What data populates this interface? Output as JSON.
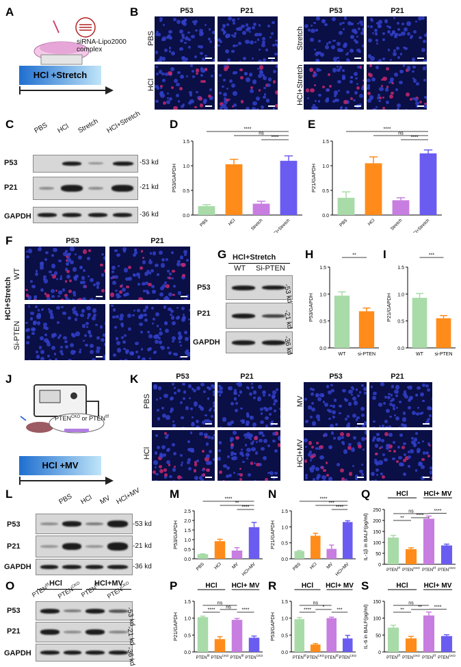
{
  "panels": [
    "A",
    "B",
    "C",
    "D",
    "E",
    "F",
    "G",
    "H",
    "I",
    "J",
    "K",
    "L",
    "M",
    "N",
    "O",
    "P",
    "Q",
    "R",
    "S"
  ],
  "A": {
    "complex_label": "siRNA-Lipo2000\ncomplex",
    "bar": "HCl +Stretch"
  },
  "B": {
    "cols_left": [
      "P53",
      "P21"
    ],
    "cols_right": [
      "P53",
      "P21"
    ],
    "rows_left": [
      "PBS",
      "HCl"
    ],
    "rows_right": [
      "Stretch",
      "HCl+Stretch"
    ]
  },
  "C": {
    "lanes": [
      "PBS",
      "HCl",
      "Stretch",
      "HCl+Stretch"
    ],
    "rows": [
      "P53",
      "P21",
      "GAPDH"
    ],
    "kd": [
      "-53 kd",
      "-21 kd",
      "-36 kd"
    ]
  },
  "F": {
    "cols": [
      "P53",
      "P21"
    ],
    "group": "HCl+Stretch",
    "rows": [
      "WT",
      "Si-PTEN"
    ]
  },
  "G": {
    "title": "HCl+Stretch",
    "lanes": [
      "WT",
      "Si-PTEN"
    ],
    "rows": [
      "P53",
      "P21",
      "GAPDH"
    ],
    "kd": [
      "-53 kd",
      "-21 kd",
      "-36 kd"
    ]
  },
  "J": {
    "mouse_label": "PTEN",
    "bar": "HCl +MV"
  },
  "K": {
    "cols_left": [
      "P53",
      "P21"
    ],
    "cols_right": [
      "P53",
      "P21"
    ],
    "rows_left": [
      "PBS",
      "HCl"
    ],
    "rows_right": [
      "MV",
      "HCl+MV"
    ]
  },
  "L": {
    "lanes": [
      "PBS",
      "HCl",
      "MV",
      "HCl+MV"
    ],
    "rows": [
      "P53",
      "P21",
      "GAPDH"
    ],
    "kd": [
      "-53 kd",
      "-21 kd",
      "-36 kd"
    ]
  },
  "O": {
    "groups": [
      "HCl",
      "HCl+MV"
    ],
    "lanes": [
      "PTEN",
      "PTEN",
      "PTEN",
      "PTEN"
    ],
    "rows": [
      "P53",
      "P21",
      "GAPDH"
    ],
    "kd": [
      "-53 kd",
      "-21 kd",
      "-36 kd"
    ]
  },
  "colors": {
    "green": "#a8dba8",
    "orange": "#ff8c1a",
    "purple": "#c77ee0",
    "blue": "#6a5cf0"
  },
  "chart_data": [
    {
      "id": "D",
      "type": "bar",
      "categories": [
        "PBS",
        "HCl",
        "Stretch",
        "HCl+Stretch"
      ],
      "values": [
        0.18,
        1.03,
        0.23,
        1.1
      ],
      "errors": [
        0.03,
        0.1,
        0.05,
        0.1
      ],
      "ylabel": "P53/GAPDH",
      "ylim": [
        0,
        1.5
      ],
      "yticks": [
        "0.0",
        "0.5",
        "1.0",
        "1.5"
      ],
      "sig": [
        [
          "****",
          "PBS",
          "HCl+Stretch"
        ],
        [
          "ns",
          "HCl",
          "HCl+Stretch"
        ],
        [
          "****",
          "Stretch",
          "HCl+Stretch"
        ]
      ]
    },
    {
      "id": "E",
      "type": "bar",
      "categories": [
        "PBS",
        "HCl",
        "Stretch",
        "HCl+Stretch"
      ],
      "values": [
        0.35,
        1.05,
        0.3,
        1.25
      ],
      "errors": [
        0.12,
        0.13,
        0.05,
        0.07
      ],
      "ylabel": "P21/GAPDH",
      "ylim": [
        0,
        1.5
      ],
      "yticks": [
        "0.0",
        "0.5",
        "1.0",
        "1.5"
      ],
      "sig": [
        [
          "****",
          "PBS",
          "HCl+Stretch"
        ],
        [
          "ns",
          "HCl",
          "HCl+Stretch"
        ],
        [
          "****",
          "Stretch",
          "HCl+Stretch"
        ]
      ]
    },
    {
      "id": "H",
      "type": "bar",
      "categories": [
        "WT",
        "si-PTEN"
      ],
      "values": [
        0.97,
        0.68
      ],
      "errors": [
        0.07,
        0.06
      ],
      "ylabel": "P53/GAPDH",
      "ylim": [
        0,
        1.5
      ],
      "yticks": [
        "0.0",
        "0.5",
        "1.0",
        "1.5"
      ],
      "sig": [
        [
          "**",
          "WT",
          "si-PTEN"
        ]
      ]
    },
    {
      "id": "I",
      "type": "bar",
      "categories": [
        "WT",
        "si-PTEN"
      ],
      "values": [
        0.93,
        0.55
      ],
      "errors": [
        0.08,
        0.05
      ],
      "ylabel": "P21/GAPDH",
      "ylim": [
        0,
        1.5
      ],
      "yticks": [
        "0.0",
        "0.5",
        "1.0",
        "1.5"
      ],
      "sig": [
        [
          "***",
          "WT",
          "si-PTEN"
        ]
      ]
    },
    {
      "id": "M",
      "type": "bar",
      "categories": [
        "PBS",
        "HCl",
        "MV",
        "HCl+MV"
      ],
      "values": [
        0.24,
        0.92,
        0.43,
        1.65
      ],
      "errors": [
        0.02,
        0.1,
        0.15,
        0.25
      ],
      "ylabel": "P53/GAPDH",
      "ylim": [
        0,
        2.5
      ],
      "yticks": [
        "0.0",
        "0.5",
        "1.0",
        "1.5",
        "2.0",
        "2.5"
      ],
      "sig": [
        [
          "****",
          "PBS",
          "HCl+MV"
        ],
        [
          "**",
          "HCl",
          "HCl+MV"
        ],
        [
          "****",
          "MV",
          "HCl+MV"
        ]
      ]
    },
    {
      "id": "N",
      "type": "bar",
      "categories": [
        "PBS",
        "HCl",
        "MV",
        "HCl+MV"
      ],
      "values": [
        0.24,
        0.72,
        0.31,
        1.15
      ],
      "errors": [
        0.02,
        0.08,
        0.12,
        0.04
      ],
      "ylabel": "P21/GAPDH",
      "ylim": [
        0,
        1.5
      ],
      "yticks": [
        "0.0",
        "0.5",
        "1.0",
        "1.5"
      ],
      "sig": [
        [
          "****",
          "PBS",
          "HCl+MV"
        ],
        [
          "***",
          "HCl",
          "HCl+MV"
        ],
        [
          "****",
          "MV",
          "HCl+MV"
        ]
      ]
    },
    {
      "id": "R",
      "type": "bar",
      "categories": [
        "PTENf/f",
        "PTENCKO",
        "PTENf/f",
        "PTENCKO"
      ],
      "values": [
        122,
        69,
        208,
        86
      ],
      "errors": [
        10,
        6,
        12,
        6
      ],
      "ylabel": "IL-1β in BALF(pg/ml)",
      "ylim": [
        0,
        250
      ],
      "yticks": [
        "0",
        "50",
        "100",
        "150",
        "200",
        "250"
      ],
      "groups": [
        "HCl",
        "HCl+ MV"
      ],
      "sig": [
        [
          "**",
          0,
          1
        ],
        [
          "ns",
          0,
          2
        ],
        [
          "****",
          1,
          2
        ],
        [
          "****",
          2,
          3
        ]
      ]
    },
    {
      "id": "P",
      "type": "bar",
      "categories": [
        "PTENf/f",
        "PTENCKO",
        "PTENf/f",
        "PTENCKO"
      ],
      "values": [
        1.03,
        0.38,
        0.95,
        0.42
      ],
      "errors": [
        0.03,
        0.07,
        0.04,
        0.05
      ],
      "ylabel": "P21/GAPDH",
      "ylim": [
        0,
        1.5
      ],
      "yticks": [
        "0.0",
        "0.5",
        "1.0",
        "1.5"
      ],
      "groups": [
        "HCl",
        "HCl+ MV"
      ],
      "sig": [
        [
          "****",
          0,
          1
        ],
        [
          "ns",
          0,
          2
        ],
        [
          "ns",
          1,
          2
        ],
        [
          "****",
          2,
          3
        ]
      ]
    },
    {
      "id": "Q",
      "type": "bar",
      "categories": [
        "PTENf/f",
        "PTENCKO",
        "PTENf/f",
        "PTENCKO"
      ],
      "values": [
        0.97,
        0.22,
        1.0,
        0.4
      ],
      "errors": [
        0.05,
        0.03,
        0.03,
        0.09
      ],
      "ylabel": "P53/GAPDH",
      "ylim": [
        0,
        1.5
      ],
      "yticks": [
        "0.0",
        "0.5",
        "1.0",
        "1.5"
      ],
      "groups": [
        "HCl",
        "HCl+ MV"
      ],
      "sig": [
        [
          "****",
          0,
          1
        ],
        [
          "ns",
          0,
          2
        ],
        [
          "*",
          1,
          2
        ],
        [
          "***",
          2,
          3
        ]
      ]
    },
    {
      "id": "S",
      "type": "bar",
      "categories": [
        "PTENf/f",
        "PTENCKO",
        "PTENf/f",
        "PTENCKO"
      ],
      "values": [
        72,
        40,
        108,
        47
      ],
      "errors": [
        7,
        6,
        10,
        4
      ],
      "ylabel": "IL-6 in BALF(pg/ml)",
      "ylim": [
        0,
        150
      ],
      "yticks": [
        "0",
        "50",
        "100",
        "150"
      ],
      "groups": [
        "HCl",
        "HCl+ MV"
      ],
      "sig": [
        [
          "**",
          0,
          1
        ],
        [
          "ns",
          0,
          2
        ],
        [
          "**",
          1,
          2
        ],
        [
          "****",
          2,
          3
        ]
      ]
    }
  ]
}
